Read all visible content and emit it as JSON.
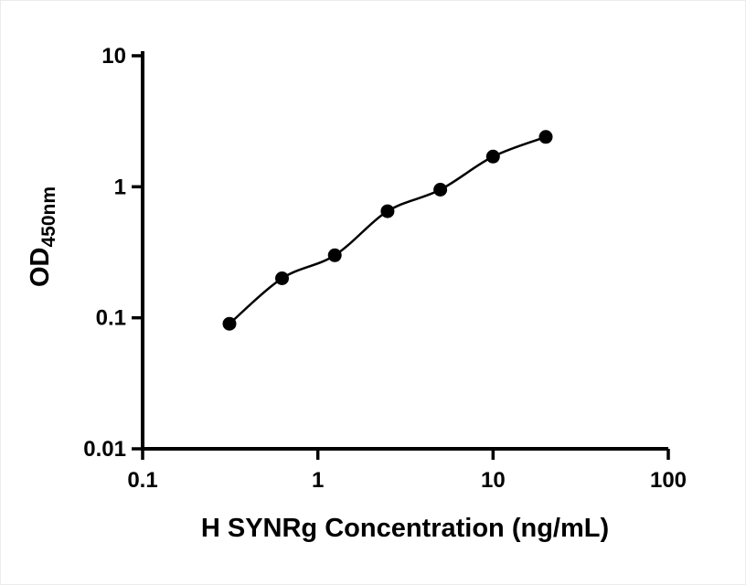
{
  "page": {
    "background": "#ffffff"
  },
  "chart_data": {
    "type": "scatter",
    "title": "",
    "xlabel": "H SYNRg Concentration (ng/mL)",
    "ylabel": "OD",
    "ylabel_sub": "450nm",
    "x_scale": "log",
    "y_scale": "log",
    "xlim": [
      0.1,
      100
    ],
    "ylim": [
      0.01,
      10
    ],
    "x_ticks": [
      "0.1",
      "1",
      "10",
      "100"
    ],
    "y_ticks": [
      "0.01",
      "0.1",
      "1",
      "10"
    ],
    "x": [
      0.313,
      0.625,
      1.25,
      2.5,
      5,
      10,
      20
    ],
    "y": [
      0.09,
      0.2,
      0.3,
      0.65,
      0.95,
      1.7,
      2.4
    ],
    "marker": "filled-circle",
    "marker_color": "#000000",
    "line_color": "#000000",
    "axis_color": "#000000",
    "grid": "off",
    "legend": "none"
  }
}
